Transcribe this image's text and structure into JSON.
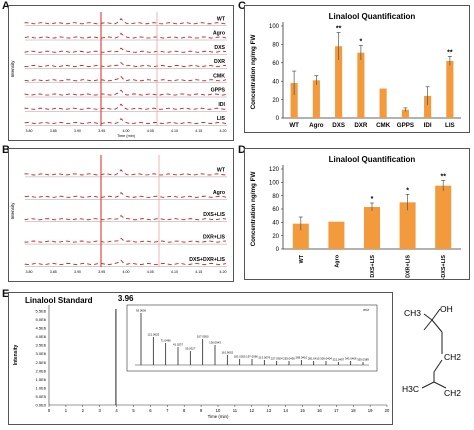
{
  "panels": {
    "a": "A",
    "b": "B",
    "c": "C",
    "d": "D",
    "e": "E"
  },
  "panel_a": {
    "ylabel": "Intensity",
    "xlabel": "Time (min)",
    "traces": [
      "WT",
      "Agro",
      "DXS",
      "DXR",
      "CMK",
      "GPPS",
      "IDI",
      "LIS"
    ],
    "xticks": [
      "3.80",
      "3.85",
      "3.90",
      "3.95",
      "4.00",
      "4.05",
      "4.10",
      "4.15",
      "4.20"
    ]
  },
  "panel_b": {
    "ylabel": "Intensity",
    "traces": [
      "WT",
      "Agro",
      "DXS+LIS",
      "DXR+LIS",
      "DXS+DXR+LIS"
    ],
    "xticks": [
      "3.80",
      "3.85",
      "3.90",
      "3.95",
      "4.00",
      "4.05",
      "4.10",
      "4.15",
      "4.20"
    ]
  },
  "chart_data": [
    {
      "type": "bar",
      "title": "Linalool Quantification",
      "ylabel": "Concentration ng/mg FW",
      "categories": [
        "WT",
        "Agro",
        "DXS",
        "DXR",
        "CMK",
        "GPPS",
        "IDI",
        "LIS"
      ],
      "values": [
        38,
        41,
        78,
        71,
        32,
        9,
        24,
        62
      ],
      "errors": [
        13,
        5,
        15,
        8,
        0,
        2,
        10,
        5
      ],
      "significance": [
        "",
        "",
        "**",
        "*",
        "",
        "",
        "",
        "**"
      ],
      "yticks": [
        0,
        20,
        40,
        60,
        80,
        100
      ],
      "ylim": [
        0,
        100
      ],
      "color": "#f39a3c"
    },
    {
      "type": "bar",
      "title": "Linalool Quantification",
      "ylabel": "Concentration ng/mg FW",
      "categories": [
        "WT",
        "Agro",
        "DXS+LIS",
        "DXR+LIS",
        "DXR+DXS+LIS"
      ],
      "values": [
        38,
        41,
        63,
        70,
        95
      ],
      "errors": [
        10,
        0,
        6,
        12,
        8
      ],
      "significance": [
        "",
        "",
        "*",
        "*",
        "**"
      ],
      "yticks": [
        0,
        20,
        40,
        60,
        80,
        100,
        120
      ],
      "ylim": [
        0,
        120
      ],
      "color": "#f39a3c"
    },
    {
      "type": "line",
      "title": "Linalool Standard",
      "peak_label": "3.96",
      "ylabel": "Intensity",
      "xlabel": "Time (min)",
      "yticks": [
        "0.0E0",
        "5.0E5",
        "1.0E6",
        "1.5E6",
        "2.0E6",
        "2.5E6",
        "3.0E6",
        "3.5E6",
        "4.0E6",
        "4.5E6",
        "5.0E6",
        "5.5E6"
      ],
      "xticks": [
        0,
        1,
        2,
        3,
        4,
        5,
        6,
        7,
        8,
        9,
        10,
        11,
        12,
        13,
        14,
        15,
        16,
        17,
        18,
        19,
        20
      ],
      "peak_x": 3.96,
      "inset_corner": "m/z",
      "inset_labels": [
        "93.0636",
        "121.0625",
        "71.0496",
        "41.0237",
        "55.0327",
        "107.0500",
        "136.0943",
        "161.9002",
        "181.0205",
        "197.0066",
        "213.0076",
        "227.9924",
        "255.0436",
        "268.0410",
        "281.0415",
        "300.0404",
        "321.0407",
        "341.0406",
        "355.0389"
      ]
    }
  ],
  "structure": {
    "labels": [
      "CH3",
      "OH",
      "CH2",
      "H3C",
      "CH2"
    ]
  }
}
